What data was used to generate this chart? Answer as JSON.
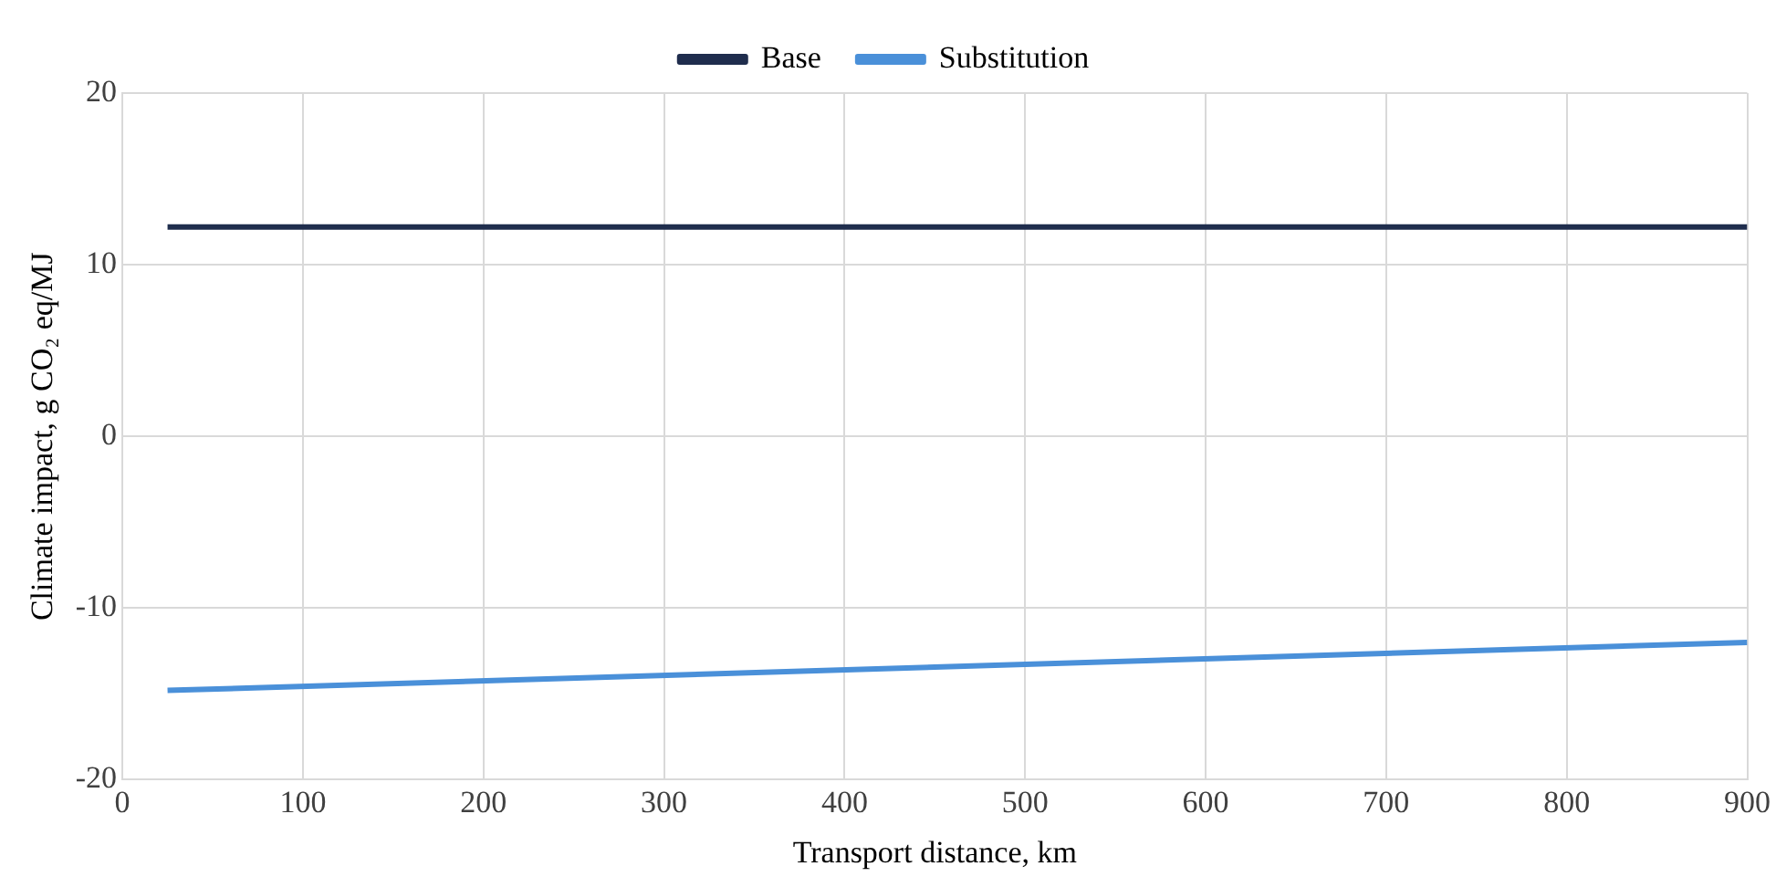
{
  "chart_data": {
    "type": "line",
    "xlabel": "Transport distance, km",
    "ylabel": "Climate impact, g CO₂ eq/MJ",
    "x": [
      25,
      900
    ],
    "series": [
      {
        "name": "Base",
        "color": "#1f2d4d",
        "values": [
          12.2,
          12.2
        ]
      },
      {
        "name": "Substitution",
        "color": "#4a90d9",
        "values": [
          -14.8,
          -12
        ]
      }
    ],
    "xlim": [
      0,
      900
    ],
    "xticks": [
      0,
      100,
      200,
      300,
      400,
      500,
      600,
      700,
      800,
      900
    ],
    "ylim": [
      -20,
      20
    ],
    "yticks": [
      -20,
      -10,
      0,
      10,
      20
    ],
    "grid": true,
    "legend": "top",
    "marker": "none",
    "line_style": "solid"
  }
}
